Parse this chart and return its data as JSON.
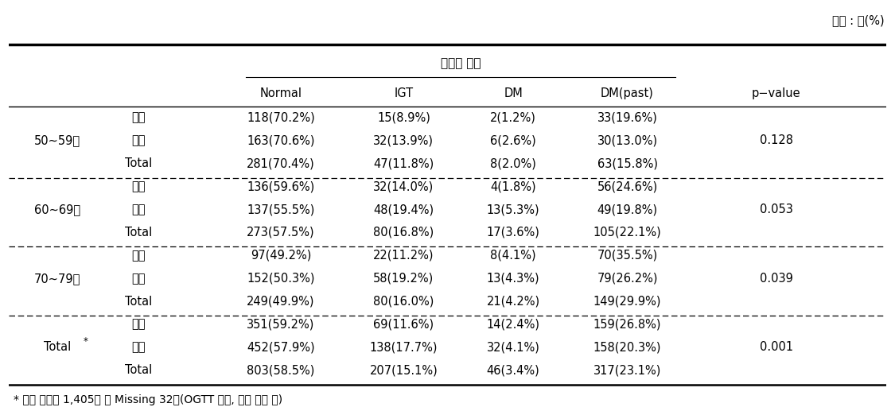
{
  "unit_text": "단위 : 명(%)",
  "header_merged": "당뇨병 진단",
  "col_headers": [
    "Normal",
    "IGT",
    "DM",
    "DM(past)",
    "p-value"
  ],
  "row_groups": [
    {
      "group_label": "50~59세",
      "rows": [
        {
          "sub": "남자",
          "normal": "118(70.2%)",
          "igt": "15(8.9%)",
          "dm": "2(1.2%)",
          "dm_past": "33(19.6%)",
          "pvalue": ""
        },
        {
          "sub": "여자",
          "normal": "163(70.6%)",
          "igt": "32(13.9%)",
          "dm": "6(2.6%)",
          "dm_past": "30(13.0%)",
          "pvalue": "0.128"
        },
        {
          "sub": "Total",
          "normal": "281(70.4%)",
          "igt": "47(11.8%)",
          "dm": "8(2.0%)",
          "dm_past": "63(15.8%)",
          "pvalue": ""
        }
      ]
    },
    {
      "group_label": "60~69세",
      "rows": [
        {
          "sub": "남자",
          "normal": "136(59.6%)",
          "igt": "32(14.0%)",
          "dm": "4(1.8%)",
          "dm_past": "56(24.6%)",
          "pvalue": ""
        },
        {
          "sub": "여자",
          "normal": "137(55.5%)",
          "igt": "48(19.4%)",
          "dm": "13(5.3%)",
          "dm_past": "49(19.8%)",
          "pvalue": "0.053"
        },
        {
          "sub": "Total",
          "normal": "273(57.5%)",
          "igt": "80(16.8%)",
          "dm": "17(3.6%)",
          "dm_past": "105(22.1%)",
          "pvalue": ""
        }
      ]
    },
    {
      "group_label": "70~79세",
      "rows": [
        {
          "sub": "남자",
          "normal": "97(49.2%)",
          "igt": "22(11.2%)",
          "dm": "8(4.1%)",
          "dm_past": "70(35.5%)",
          "pvalue": ""
        },
        {
          "sub": "여자",
          "normal": "152(50.3%)",
          "igt": "58(19.2%)",
          "dm": "13(4.3%)",
          "dm_past": "79(26.2%)",
          "pvalue": "0.039"
        },
        {
          "sub": "Total",
          "normal": "249(49.9%)",
          "igt": "80(16.0%)",
          "dm": "21(4.2%)",
          "dm_past": "149(29.9%)",
          "pvalue": ""
        }
      ]
    },
    {
      "group_label": "Total*",
      "rows": [
        {
          "sub": "남자",
          "normal": "351(59.2%)",
          "igt": "69(11.6%)",
          "dm": "14(2.4%)",
          "dm_past": "159(26.8%)",
          "pvalue": ""
        },
        {
          "sub": "여자",
          "normal": "452(57.9%)",
          "igt": "138(17.7%)",
          "dm": "32(4.1%)",
          "dm_past": "158(20.3%)",
          "pvalue": "0.001"
        },
        {
          "sub": "Total",
          "normal": "803(58.5%)",
          "igt": "207(15.1%)",
          "dm": "46(3.4%)",
          "dm_past": "317(23.1%)",
          "pvalue": ""
        }
      ]
    }
  ],
  "footnote": "* 검진 대상자 1,405명 중 Missing 32건(OGTT 거부, 채혈 불가 등)",
  "fontsize": 10.5,
  "header_fontsize": 11.0
}
